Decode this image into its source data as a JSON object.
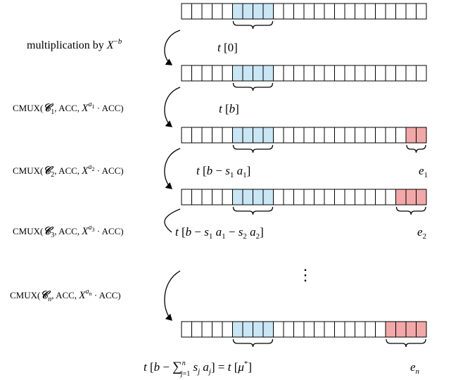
{
  "arrays": [
    {
      "id": "row0",
      "cells": 24,
      "highlight": [
        5,
        6,
        7,
        8
      ],
      "error_cells": [],
      "brace_label": "t[0]",
      "error_label": ""
    },
    {
      "id": "row1",
      "cells": 24,
      "highlight": [
        5,
        6,
        7,
        8
      ],
      "error_cells": [],
      "brace_label": "t[b]",
      "error_label": ""
    },
    {
      "id": "row2",
      "cells": 24,
      "highlight": [
        5,
        6,
        7,
        8
      ],
      "error_cells": [
        22,
        23
      ],
      "brace_label": "t[b − s1 a1]",
      "error_label": "e1"
    },
    {
      "id": "row3",
      "cells": 24,
      "highlight": [
        5,
        6,
        7,
        8
      ],
      "error_cells": [
        21,
        22,
        23
      ],
      "brace_label": "t[b − s1 a1 − s2 a2]",
      "error_label": "e2"
    },
    {
      "id": "row4",
      "cells": 24,
      "highlight": [
        5,
        6,
        7,
        8
      ],
      "error_cells": [
        20,
        21,
        22,
        23
      ],
      "brace_label": "t[b − ∑n j=1 sj aj] = t[μ*]",
      "error_label": "en"
    }
  ],
  "steps": [
    {
      "id": "step1",
      "label": "multiplication by X−b"
    },
    {
      "id": "step2",
      "label": "CMUX(𝒞1, ACC, Xa1 · ACC)"
    },
    {
      "id": "step3",
      "label": "CMUX(𝒞2, ACC, Xa2 · ACC)"
    },
    {
      "id": "step4",
      "label": "CMUX(𝒞3, ACC, Xa3 · ACC)"
    },
    {
      "id": "step5",
      "label": "CMUX(𝒞n, ACC, Xan · ACC)"
    }
  ],
  "ellipsis": "⋮",
  "colors": {
    "highlight": "#c9e6f5",
    "error": "#f2a8a8",
    "stroke": "#000000",
    "cell_fill": "#ffffff"
  }
}
